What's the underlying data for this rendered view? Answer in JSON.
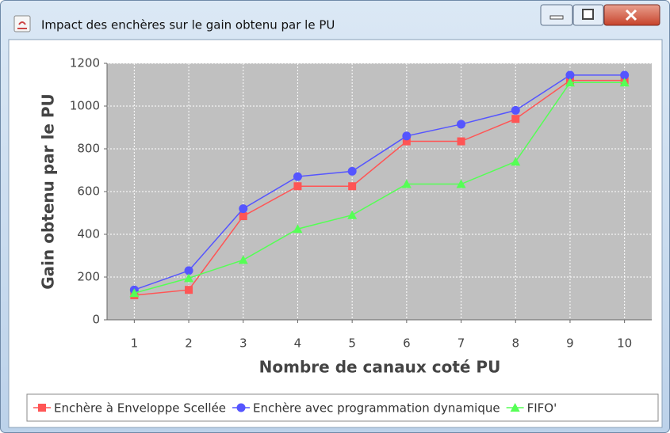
{
  "window": {
    "title": "Impact des enchères sur le gain obtenu par le PU"
  },
  "chart_data": {
    "type": "line",
    "xlabel": "Nombre de canaux coté PU",
    "ylabel": "Gain obtenu par le PU",
    "x": [
      1,
      2,
      3,
      4,
      5,
      6,
      7,
      8,
      9,
      10
    ],
    "xlim": [
      0.5,
      10.5
    ],
    "xticks": [
      1,
      2,
      3,
      4,
      5,
      6,
      7,
      8,
      9,
      10
    ],
    "ylim": [
      0,
      1200
    ],
    "yticks": [
      0,
      200,
      400,
      600,
      800,
      1000,
      1200
    ],
    "grid": true,
    "legend": "bottom",
    "series": [
      {
        "name": "Enchère à Enveloppe Scellée",
        "color": "#ff5555",
        "marker": "square",
        "values": [
          115,
          140,
          485,
          625,
          625,
          835,
          835,
          940,
          1120,
          1120
        ]
      },
      {
        "name": "Enchère avec programmation dynamique",
        "color": "#5555ff",
        "marker": "circle",
        "values": [
          140,
          230,
          520,
          670,
          695,
          860,
          915,
          980,
          1145,
          1145
        ]
      },
      {
        "name": "FIFO'",
        "color": "#55ff55",
        "marker": "triangle",
        "values": [
          125,
          195,
          280,
          425,
          490,
          635,
          635,
          740,
          1110,
          1110
        ]
      }
    ]
  }
}
